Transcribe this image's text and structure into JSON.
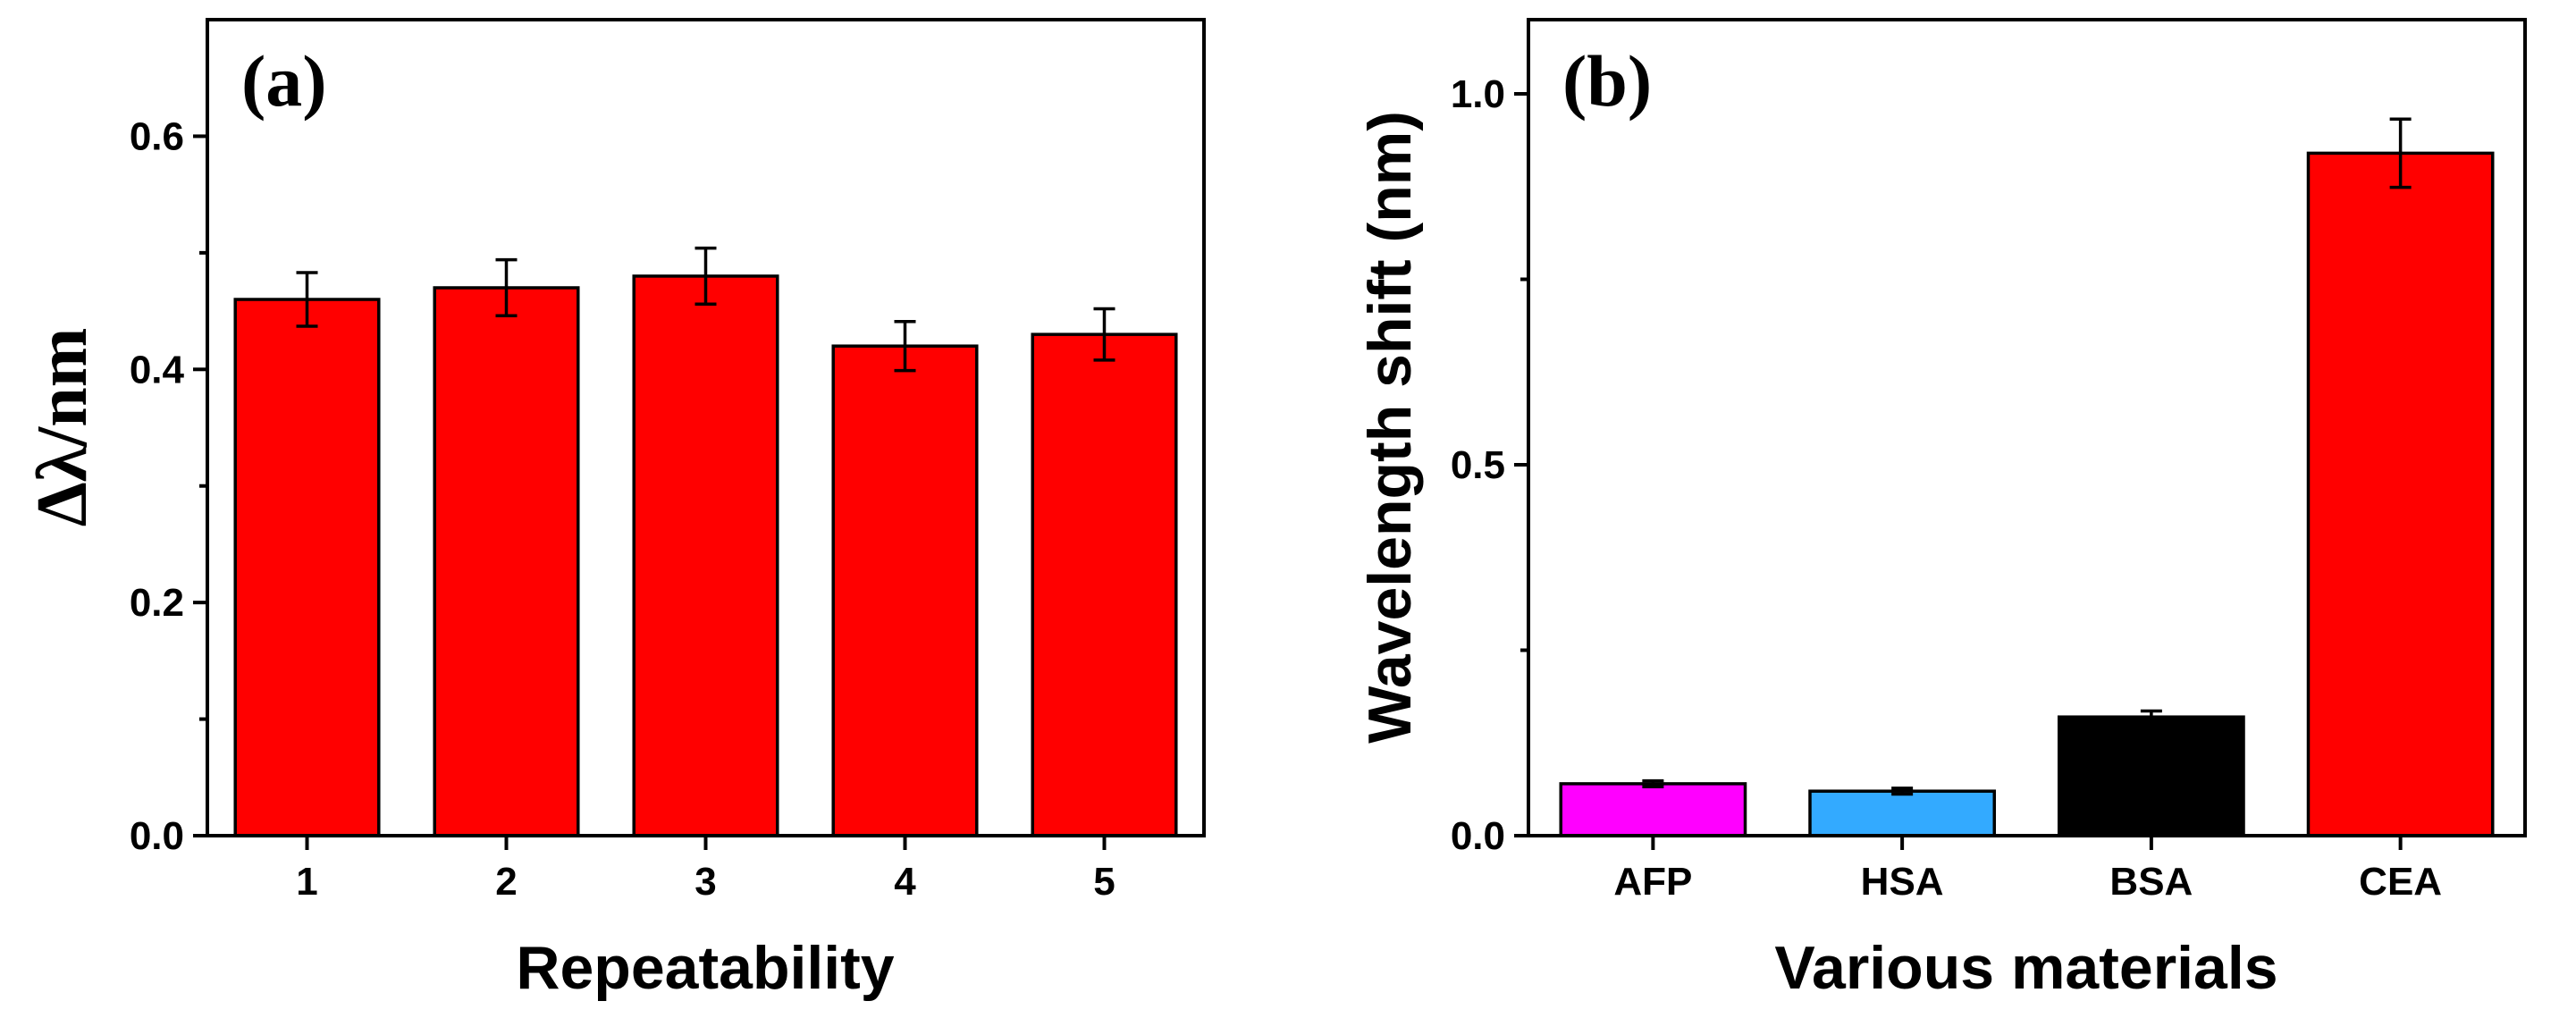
{
  "chart_data": [
    {
      "type": "bar",
      "panel_label": "(a)",
      "title": "",
      "xlabel": "Repeatability",
      "ylabel": "Δλ/nm",
      "categories": [
        "1",
        "2",
        "3",
        "4",
        "5"
      ],
      "values": [
        0.46,
        0.47,
        0.48,
        0.42,
        0.43
      ],
      "errors": [
        0.023,
        0.024,
        0.024,
        0.021,
        0.022
      ],
      "colors": [
        "#ff0000",
        "#ff0000",
        "#ff0000",
        "#ff0000",
        "#ff0000"
      ],
      "ylim": [
        0,
        0.7
      ],
      "yticks": [
        0.0,
        0.2,
        0.4,
        0.6
      ],
      "ytick_labels": [
        "0.0",
        "0.2",
        "0.4",
        "0.6"
      ],
      "grid": false
    },
    {
      "type": "bar",
      "panel_label": "(b)",
      "title": "",
      "xlabel": "Various materials",
      "ylabel": "Wavelength shift (nm)",
      "categories": [
        "AFP",
        "HSA",
        "BSA",
        "CEA"
      ],
      "values": [
        0.07,
        0.06,
        0.16,
        0.92
      ],
      "errors": [
        0.004,
        0.004,
        0.008,
        0.046
      ],
      "colors": [
        "#ff00ff",
        "#33aaff",
        "#000000",
        "#ff0000"
      ],
      "ylim": [
        0,
        1.1
      ],
      "yticks": [
        0.0,
        0.5,
        1.0
      ],
      "ytick_labels": [
        "0.0",
        "0.5",
        "1.0"
      ],
      "grid": false
    }
  ]
}
